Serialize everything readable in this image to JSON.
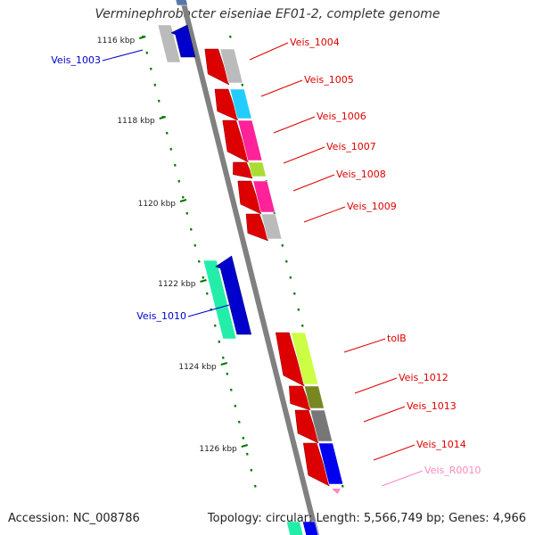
{
  "title": "Verminephrobacter eiseniae EF01-2, complete genome",
  "footer": {
    "accession": "Accession: NC_008786",
    "summary": "Topology: circular; Length: 5,566,749 bp; Genes: 4,966"
  },
  "scale_labels": [
    "1116 kbp",
    "1118 kbp",
    "1120 kbp",
    "1122 kbp",
    "1124 kbp",
    "1126 kbp"
  ],
  "genes": [
    {
      "name": "Veis_1003",
      "strand": "reverse",
      "color": "#0000cc",
      "label_color": "#0000cc"
    },
    {
      "name": "Veis_1004",
      "strand": "forward",
      "color": "#dd0000",
      "label_color": "#dd0000"
    },
    {
      "name": "Veis_1005",
      "strand": "forward",
      "color": "#dd0000",
      "label_color": "#dd0000"
    },
    {
      "name": "Veis_1006",
      "strand": "forward",
      "color": "#dd0000",
      "label_color": "#dd0000"
    },
    {
      "name": "Veis_1007",
      "strand": "forward",
      "color": "#dd0000",
      "label_color": "#dd0000"
    },
    {
      "name": "Veis_1008",
      "strand": "forward",
      "color": "#dd0000",
      "label_color": "#dd0000"
    },
    {
      "name": "Veis_1009",
      "strand": "forward",
      "color": "#dd0000",
      "label_color": "#dd0000"
    },
    {
      "name": "Veis_1010",
      "strand": "reverse",
      "color": "#0000cc",
      "label_color": "#0000cc"
    },
    {
      "name": "tolB",
      "strand": "forward",
      "color": "#dd0000",
      "label_color": "#dd0000"
    },
    {
      "name": "Veis_1012",
      "strand": "forward",
      "color": "#dd0000",
      "label_color": "#dd0000"
    },
    {
      "name": "Veis_1013",
      "strand": "forward",
      "color": "#dd0000",
      "label_color": "#dd0000"
    },
    {
      "name": "Veis_1014",
      "strand": "forward",
      "color": "#dd0000",
      "label_color": "#dd0000"
    },
    {
      "name": "Veis_R0010",
      "strand": "forward",
      "color": "#ff88bb",
      "label_color": "#ff88bb"
    }
  ],
  "colors": {
    "backbone": "#808080",
    "forward_cds": "#dd0000",
    "reverse_cds": "#0000cc",
    "scale_ticks": "#007700",
    "cog_grey": "#bbbbbb",
    "cog_cyan": "#22ccff",
    "cog_magenta": "#ff2299",
    "cog_yellowgreen": "#aadd33",
    "cog_lightgreen": "#ccff44",
    "cog_olive": "#778822",
    "cog_darkgrey": "#777777",
    "cog_blue": "#0000ee",
    "cog_teal": "#22eeaa",
    "rna_pink": "#ff88bb"
  }
}
